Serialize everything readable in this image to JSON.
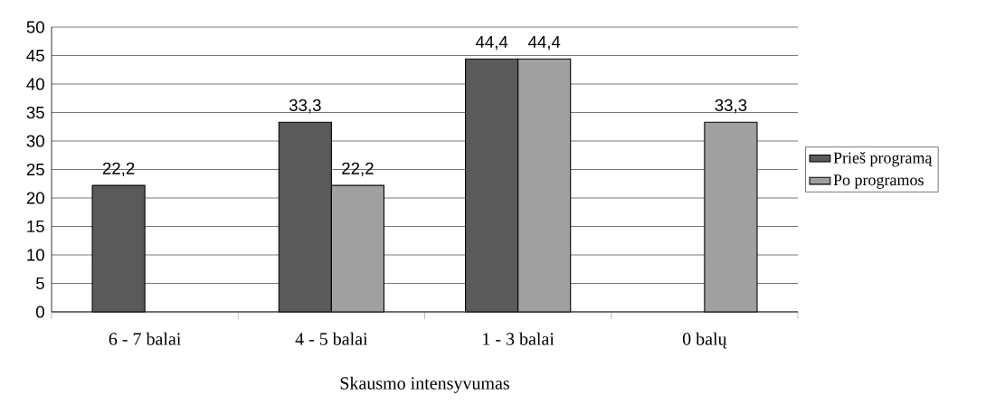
{
  "chart_data": {
    "type": "bar",
    "xlabel": "Skausmo intensyvumas",
    "categories": [
      "6 - 7 balai",
      "4 - 5 balai",
      "1 - 3 balai",
      "0 balų"
    ],
    "series": [
      {
        "name": "Prieš programą",
        "color": "#5a5a5a",
        "values": [
          22.2,
          33.3,
          44.4,
          null
        ],
        "value_labels": [
          "22,2",
          "33,3",
          "44,4",
          null
        ]
      },
      {
        "name": "Po programos",
        "color": "#a0a0a0",
        "values": [
          null,
          22.2,
          44.4,
          33.3
        ],
        "value_labels": [
          null,
          "22,2",
          "44,4",
          "33,3"
        ]
      }
    ],
    "ylim": [
      0,
      50
    ],
    "yticks": [
      0,
      5,
      10,
      15,
      20,
      25,
      30,
      35,
      40,
      45,
      50
    ],
    "grid": "y",
    "legend": "right"
  }
}
